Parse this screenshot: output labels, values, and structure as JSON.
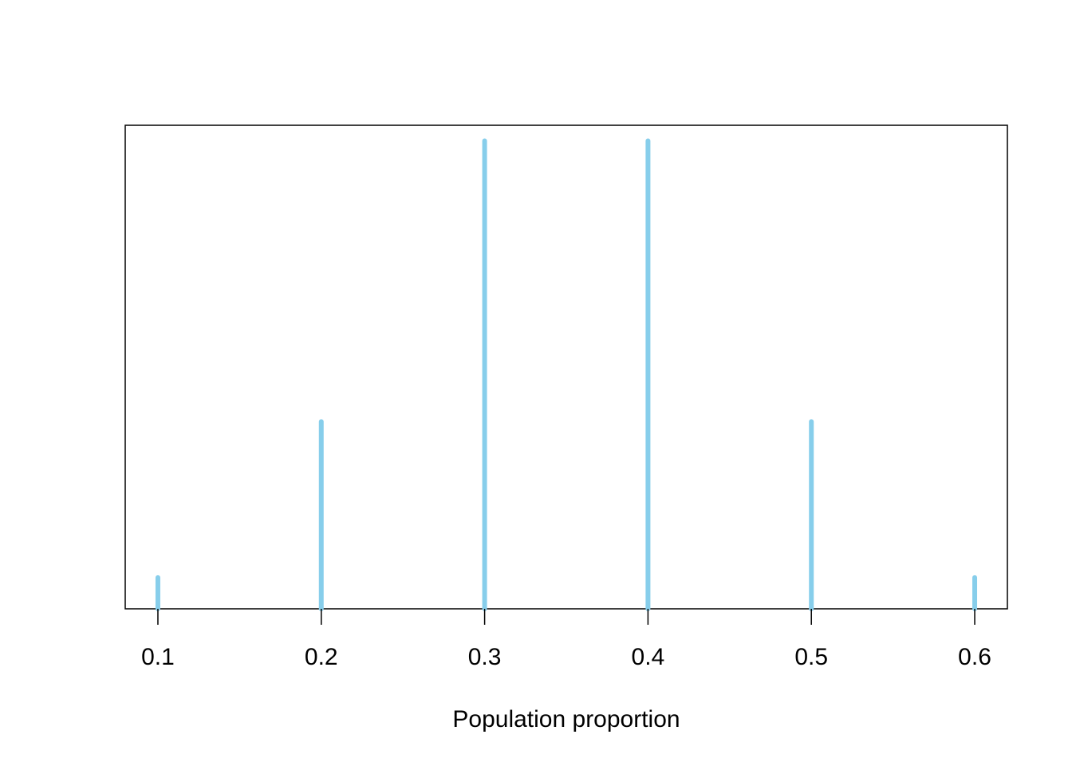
{
  "chart_data": {
    "type": "bar",
    "style": "spike",
    "x": [
      0.1,
      0.2,
      0.3,
      0.4,
      0.5,
      0.6
    ],
    "values": [
      1,
      6,
      15,
      15,
      6,
      1
    ],
    "xticks": [
      "0.1",
      "0.2",
      "0.3",
      "0.4",
      "0.5",
      "0.6"
    ],
    "xlabel": "Population proportion",
    "ylabel": "",
    "title": "",
    "xlim": [
      0.08,
      0.62
    ],
    "ylim": [
      0,
      15.5
    ],
    "y_axis_shown": false,
    "grid": false,
    "box": true,
    "colors": {
      "bar": "#87CEEB",
      "axis": "#000000"
    }
  }
}
